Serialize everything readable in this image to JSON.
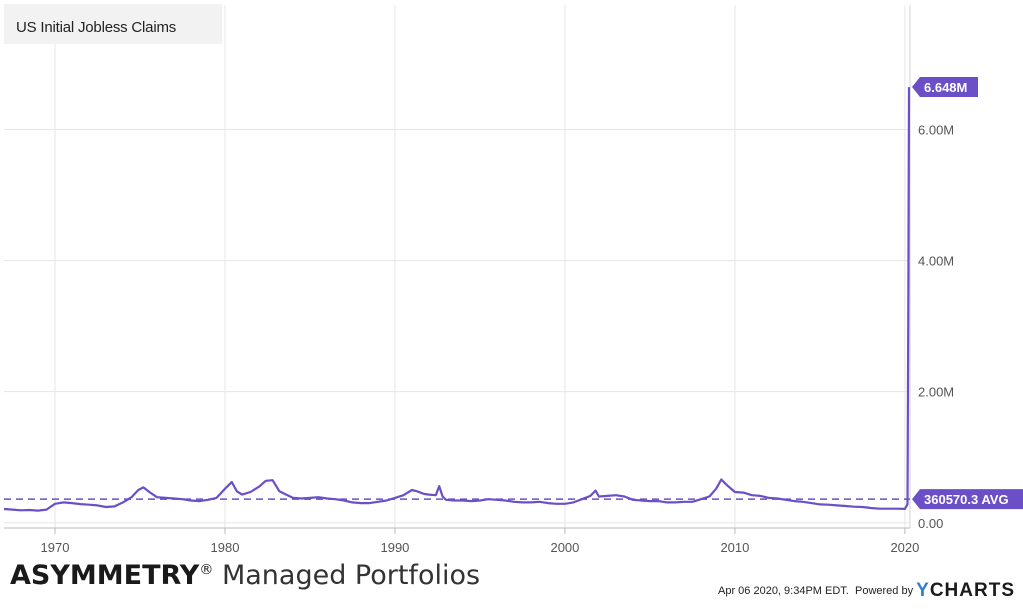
{
  "legend": {
    "series_name": "US Initial Jobless Claims"
  },
  "chart_data": {
    "type": "line",
    "title": "",
    "x_ticks": [
      "1970",
      "1980",
      "1990",
      "2000",
      "2010",
      "2020"
    ],
    "y_ticks": [
      "0.00",
      "2.00M",
      "4.00M",
      "6.00M"
    ],
    "xlim": [
      1967,
      2020.3
    ],
    "ylim": [
      -80000,
      7900000
    ],
    "grid": true,
    "series": [
      {
        "name": "US Initial Jobless Claims",
        "color": "#6a4fc7",
        "x": [
          1967.0,
          1967.5,
          1968.0,
          1968.5,
          1969.0,
          1969.5,
          1970.0,
          1970.5,
          1971.0,
          1971.5,
          1972.0,
          1972.5,
          1973.0,
          1973.5,
          1974.0,
          1974.5,
          1974.9,
          1975.2,
          1975.6,
          1976.0,
          1976.5,
          1977.0,
          1977.5,
          1978.0,
          1978.5,
          1979.0,
          1979.5,
          1980.0,
          1980.4,
          1980.7,
          1981.0,
          1981.5,
          1982.0,
          1982.4,
          1982.8,
          1983.2,
          1983.6,
          1984.0,
          1984.5,
          1985.0,
          1985.5,
          1986.0,
          1986.5,
          1987.0,
          1987.5,
          1988.0,
          1988.5,
          1989.0,
          1989.5,
          1990.0,
          1990.5,
          1991.0,
          1991.3,
          1991.7,
          1992.0,
          1992.4,
          1992.6,
          1992.8,
          1993.0,
          1993.5,
          1994.0,
          1994.5,
          1995.0,
          1995.5,
          1996.0,
          1996.5,
          1997.0,
          1997.5,
          1998.0,
          1998.5,
          1999.0,
          1999.5,
          2000.0,
          2000.5,
          2001.0,
          2001.5,
          2001.8,
          2002.0,
          2002.5,
          2003.0,
          2003.5,
          2004.0,
          2004.5,
          2005.0,
          2005.5,
          2006.0,
          2006.5,
          2007.0,
          2007.5,
          2008.0,
          2008.5,
          2008.9,
          2009.2,
          2009.5,
          2010.0,
          2010.5,
          2011.0,
          2011.5,
          2012.0,
          2012.5,
          2013.0,
          2013.5,
          2014.0,
          2014.5,
          2015.0,
          2015.5,
          2016.0,
          2016.5,
          2017.0,
          2017.5,
          2018.0,
          2018.5,
          2019.0,
          2019.5,
          2020.0,
          2020.15,
          2020.2,
          2020.24
        ],
        "values": [
          210000,
          200000,
          190000,
          195000,
          185000,
          200000,
          290000,
          310000,
          300000,
          285000,
          275000,
          265000,
          240000,
          250000,
          310000,
          390000,
          500000,
          540000,
          460000,
          390000,
          380000,
          370000,
          360000,
          340000,
          330000,
          350000,
          380000,
          520000,
          620000,
          480000,
          430000,
          470000,
          550000,
          640000,
          650000,
          480000,
          430000,
          380000,
          370000,
          380000,
          390000,
          370000,
          360000,
          340000,
          310000,
          300000,
          300000,
          320000,
          340000,
          380000,
          420000,
          500000,
          480000,
          440000,
          430000,
          420000,
          560000,
          400000,
          350000,
          340000,
          340000,
          330000,
          340000,
          360000,
          350000,
          340000,
          320000,
          310000,
          310000,
          320000,
          300000,
          290000,
          290000,
          310000,
          360000,
          410000,
          490000,
          400000,
          410000,
          420000,
          400000,
          350000,
          340000,
          330000,
          330000,
          310000,
          310000,
          320000,
          320000,
          360000,
          400000,
          520000,
          660000,
          580000,
          470000,
          460000,
          420000,
          410000,
          380000,
          370000,
          350000,
          330000,
          320000,
          300000,
          280000,
          275000,
          265000,
          255000,
          245000,
          240000,
          225000,
          215000,
          215000,
          215000,
          212000,
          282000,
          3300000,
          6648000
        ]
      }
    ],
    "average": {
      "value": 360570.3,
      "label": "360570.3 AVG",
      "style": "dashed"
    },
    "last_value_label": "6.648M"
  },
  "branding": {
    "bold": "ASYMMETRY",
    "reg": "®",
    "rest": " Managed Portfolios"
  },
  "footer": {
    "timestamp": "Apr 06 2020, 9:34PM EDT.",
    "powered": "Powered by",
    "logo_y": "Y",
    "logo_rest": "CHARTS"
  }
}
